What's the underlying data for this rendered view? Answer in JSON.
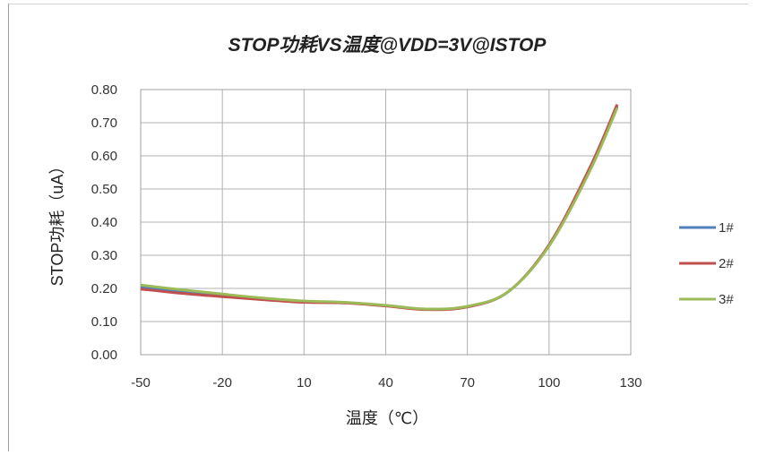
{
  "chart_data": {
    "type": "line",
    "title": "STOP功耗VS温度@VDD=3V@ISTOP",
    "xlabel": "温度（℃）",
    "ylabel": "STOP功耗（uA）",
    "xlim": [
      -50,
      130
    ],
    "ylim": [
      0,
      0.8
    ],
    "x_ticks": [
      "-50",
      "-20",
      "10",
      "40",
      "70",
      "100",
      "130"
    ],
    "y_ticks": [
      "0.00",
      "0.10",
      "0.20",
      "0.30",
      "0.40",
      "0.50",
      "0.60",
      "0.70",
      "0.80"
    ],
    "grid": true,
    "legend_position": "right",
    "series": [
      {
        "name": "1#",
        "color": "#4f81bd",
        "x": [
          -50,
          -35,
          -20,
          -5,
          10,
          25,
          40,
          55,
          70,
          85,
          100,
          115,
          125
        ],
        "y": [
          0.205,
          0.19,
          0.178,
          0.168,
          0.16,
          0.157,
          0.148,
          0.137,
          0.145,
          0.19,
          0.33,
          0.56,
          0.75
        ]
      },
      {
        "name": "2#",
        "color": "#c0504d",
        "x": [
          -50,
          -35,
          -20,
          -5,
          10,
          25,
          40,
          55,
          70,
          85,
          100,
          115,
          125
        ],
        "y": [
          0.198,
          0.185,
          0.175,
          0.166,
          0.158,
          0.156,
          0.147,
          0.136,
          0.144,
          0.19,
          0.332,
          0.565,
          0.755
        ]
      },
      {
        "name": "3#",
        "color": "#9bbb59",
        "x": [
          -50,
          -35,
          -20,
          -5,
          10,
          25,
          40,
          55,
          70,
          85,
          100,
          115,
          125
        ],
        "y": [
          0.21,
          0.196,
          0.183,
          0.171,
          0.162,
          0.158,
          0.149,
          0.138,
          0.146,
          0.19,
          0.328,
          0.555,
          0.745
        ]
      }
    ]
  }
}
